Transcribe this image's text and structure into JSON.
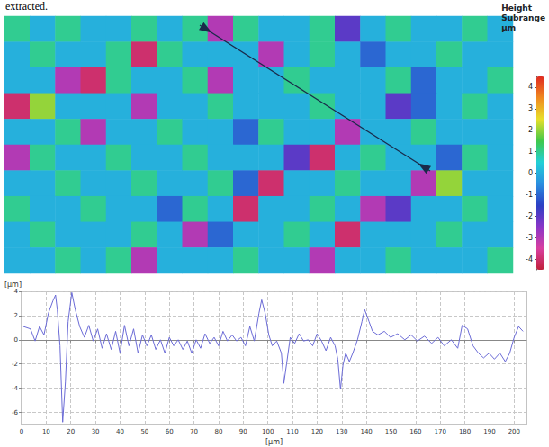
{
  "caption": "extracted.",
  "chart_data": [
    {
      "type": "heatmap",
      "tick_labels": false,
      "colorbar_title": "Height Subrange",
      "colorbar_unit": "µm",
      "colorbar_range": [
        -4.5,
        4.5
      ],
      "colorbar_ticks": [
        4,
        3,
        2,
        1,
        0,
        -1,
        -2,
        -3,
        -4
      ],
      "cells": [
        [
          1,
          0,
          1,
          0,
          0,
          1,
          0,
          1,
          -3,
          1,
          0,
          0,
          1,
          -2,
          0,
          1,
          0,
          0,
          1,
          0
        ],
        [
          0,
          1,
          0,
          0,
          1,
          -4,
          1,
          0,
          0,
          0,
          -3,
          0,
          1,
          0,
          -1,
          0,
          0,
          1,
          0,
          0
        ],
        [
          0,
          0,
          -3,
          -4,
          1,
          0,
          0,
          1,
          -3,
          0,
          0,
          1,
          0,
          0,
          0,
          1,
          -1,
          0,
          0,
          1
        ],
        [
          -4,
          2,
          0,
          0,
          0,
          -3,
          0,
          0,
          1,
          0,
          0,
          0,
          1,
          0,
          0,
          -2,
          -1,
          0,
          1,
          0
        ],
        [
          0,
          0,
          1,
          -3,
          0,
          0,
          1,
          0,
          0,
          -1,
          1,
          0,
          0,
          -3,
          0,
          0,
          1,
          0,
          0,
          0
        ],
        [
          -3,
          1,
          0,
          0,
          1,
          0,
          0,
          1,
          0,
          0,
          0,
          -2,
          -4,
          0,
          1,
          0,
          0,
          -1,
          1,
          0
        ],
        [
          0,
          0,
          1,
          0,
          0,
          1,
          0,
          0,
          1,
          -1,
          -4,
          0,
          0,
          1,
          0,
          0,
          -3,
          2,
          0,
          0
        ],
        [
          1,
          0,
          0,
          1,
          0,
          0,
          -1,
          1,
          0,
          -4,
          0,
          0,
          1,
          0,
          -3,
          -2,
          0,
          0,
          1,
          0
        ],
        [
          0,
          1,
          0,
          0,
          0,
          1,
          0,
          -3,
          -1,
          0,
          0,
          1,
          0,
          -4,
          0,
          0,
          0,
          1,
          0,
          0
        ],
        [
          0,
          0,
          1,
          0,
          1,
          -3,
          0,
          0,
          0,
          1,
          0,
          0,
          -3,
          0,
          0,
          1,
          0,
          0,
          0,
          1
        ]
      ]
    },
    {
      "type": "line",
      "x_label": "[µm]",
      "y_label": "[µm]",
      "color": "#6b6bd6",
      "grid": true,
      "xlim": [
        0,
        205
      ],
      "xticks": [
        0,
        10,
        20,
        30,
        40,
        50,
        60,
        70,
        80,
        90,
        100,
        110,
        120,
        130,
        140,
        150,
        160,
        170,
        180,
        190,
        200
      ],
      "ylim": [
        -7,
        4
      ],
      "yticks": [
        -6,
        -4,
        -2,
        0,
        2,
        4
      ],
      "x": [
        0.7,
        3.6,
        5.5,
        7.3,
        9.1,
        10.9,
        12.7,
        13.8,
        14.5,
        15.6,
        16.7,
        17.8,
        18.9,
        20.4,
        21.8,
        23.6,
        25.5,
        27.3,
        29.1,
        30.9,
        32.7,
        34.5,
        36.4,
        38.2,
        40,
        41.8,
        43.6,
        45.5,
        47.3,
        49.1,
        50.9,
        52.7,
        54.5,
        56.4,
        58.2,
        60,
        61.8,
        63.6,
        65.5,
        67.3,
        69.1,
        70.9,
        72.7,
        74.5,
        76.4,
        78.2,
        80,
        81.8,
        83.6,
        85.5,
        87.3,
        89.1,
        90.9,
        92.7,
        94.5,
        96.4,
        97.5,
        98.9,
        100.4,
        101.8,
        103.6,
        105.5,
        106.5,
        107.6,
        109.1,
        110.9,
        112.7,
        114.5,
        116.4,
        118.2,
        120,
        121.8,
        123.6,
        125.5,
        127.3,
        128.4,
        129.5,
        130.5,
        131.6,
        133.1,
        134.5,
        136.4,
        138.2,
        139.3,
        141.1,
        142.5,
        144.7,
        147.3,
        149.8,
        152.7,
        155.6,
        158.2,
        160.7,
        163.6,
        166.5,
        169.1,
        171.6,
        174.5,
        177.1,
        178.9,
        181.1,
        183.3,
        185.5,
        187.6,
        189.8,
        192,
        194.2,
        196.4,
        198.2,
        200,
        201.8,
        203.6
      ],
      "values": [
        1.1,
        0.9,
        -0.1,
        1.1,
        0.4,
        2.2,
        3.2,
        3.7,
        2.5,
        -0.5,
        -6.8,
        -3.5,
        1.5,
        3.9,
        2.5,
        1.1,
        0.2,
        1.2,
        -0.1,
        0.9,
        -0.7,
        0.5,
        -0.8,
        0.7,
        -1.1,
        1.2,
        -0.5,
        0.9,
        -1.1,
        0.4,
        -0.5,
        0.4,
        -0.8,
        0,
        -1.1,
        0.2,
        -0.5,
        0,
        -0.8,
        -0.1,
        -1.1,
        0,
        -0.7,
        0.5,
        -0.3,
        0.2,
        -0.5,
        0.7,
        -0.1,
        0.4,
        -0.1,
        0.2,
        -0.5,
        1.1,
        -0.1,
        2.2,
        3.3,
        2.2,
        0.4,
        -0.5,
        -0.1,
        -1.1,
        -3.6,
        -2,
        0.2,
        -0.3,
        0.5,
        -0.1,
        0,
        -0.5,
        0.5,
        -0.1,
        -0.9,
        0.2,
        -0.5,
        -1.6,
        -4.1,
        -2.1,
        -1.1,
        -1.8,
        -1.1,
        0,
        1.5,
        2.5,
        1.5,
        0.7,
        0.4,
        0.7,
        0.2,
        0.5,
        0,
        0.4,
        -0.1,
        0.3,
        -0.3,
        0.2,
        -0.5,
        0,
        -0.7,
        1.2,
        0.9,
        -0.5,
        -1.1,
        -1.5,
        -1.1,
        -1.6,
        -1.1,
        -1.8,
        -1.1,
        0.2,
        1.1,
        0.7
      ]
    }
  ]
}
